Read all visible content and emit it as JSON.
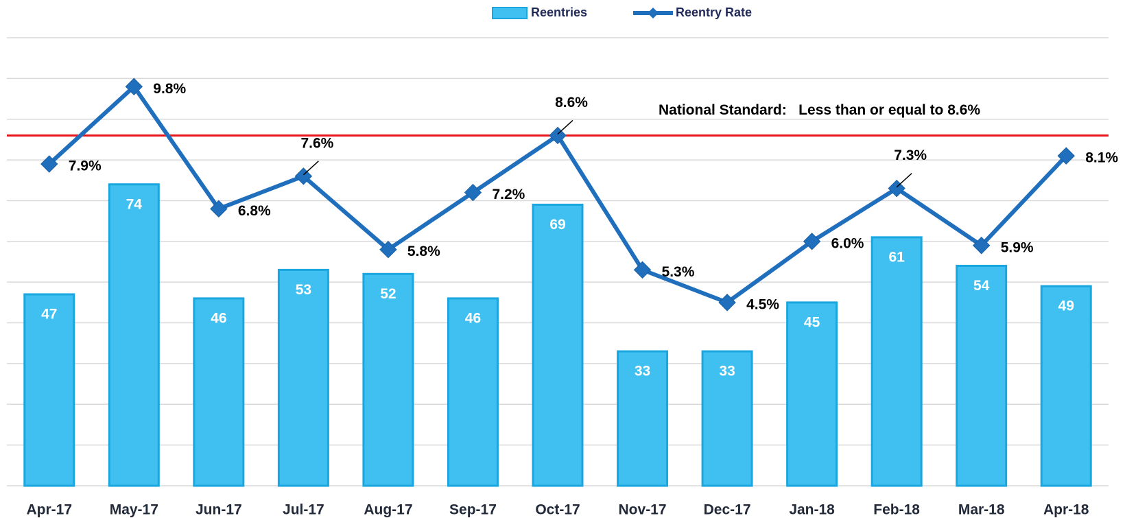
{
  "chart_data": {
    "type": "bar",
    "categories": [
      "Apr-17",
      "May-17",
      "Jun-17",
      "Jul-17",
      "Aug-17",
      "Sep-17",
      "Oct-17",
      "Nov-17",
      "Dec-17",
      "Jan-18",
      "Feb-18",
      "Mar-18",
      "Apr-18"
    ],
    "series": [
      {
        "name": "Reentries",
        "type": "bar",
        "color": "#3fc0f0",
        "values": [
          47,
          74,
          46,
          53,
          52,
          46,
          69,
          33,
          33,
          45,
          61,
          54,
          49
        ]
      },
      {
        "name": "Reentry Rate",
        "type": "line",
        "axis": "y2",
        "color": "#1f6fbd",
        "values": [
          7.9,
          9.8,
          6.8,
          7.6,
          5.8,
          7.2,
          8.6,
          5.3,
          4.5,
          6.0,
          7.3,
          5.9,
          8.1
        ],
        "value_labels": [
          "7.9%",
          "9.8%",
          "6.8%",
          "7.6%",
          "5.8%",
          "7.2%",
          "8.6%",
          "5.3%",
          "4.5%",
          "6.0%",
          "7.3%",
          "5.9%",
          "8.1%"
        ]
      }
    ],
    "ylim": [
      0,
      110
    ],
    "yticks": [
      0,
      10,
      20,
      30,
      40,
      50,
      60,
      70,
      80,
      90,
      100,
      110
    ],
    "y2lim": [
      0,
      11
    ],
    "grid": true,
    "reference_line": {
      "value": 8.6,
      "axis": "y2",
      "color": "#e8141b",
      "label": "National Standard:   Less than or equal to 8.6%"
    },
    "legend": "top"
  }
}
